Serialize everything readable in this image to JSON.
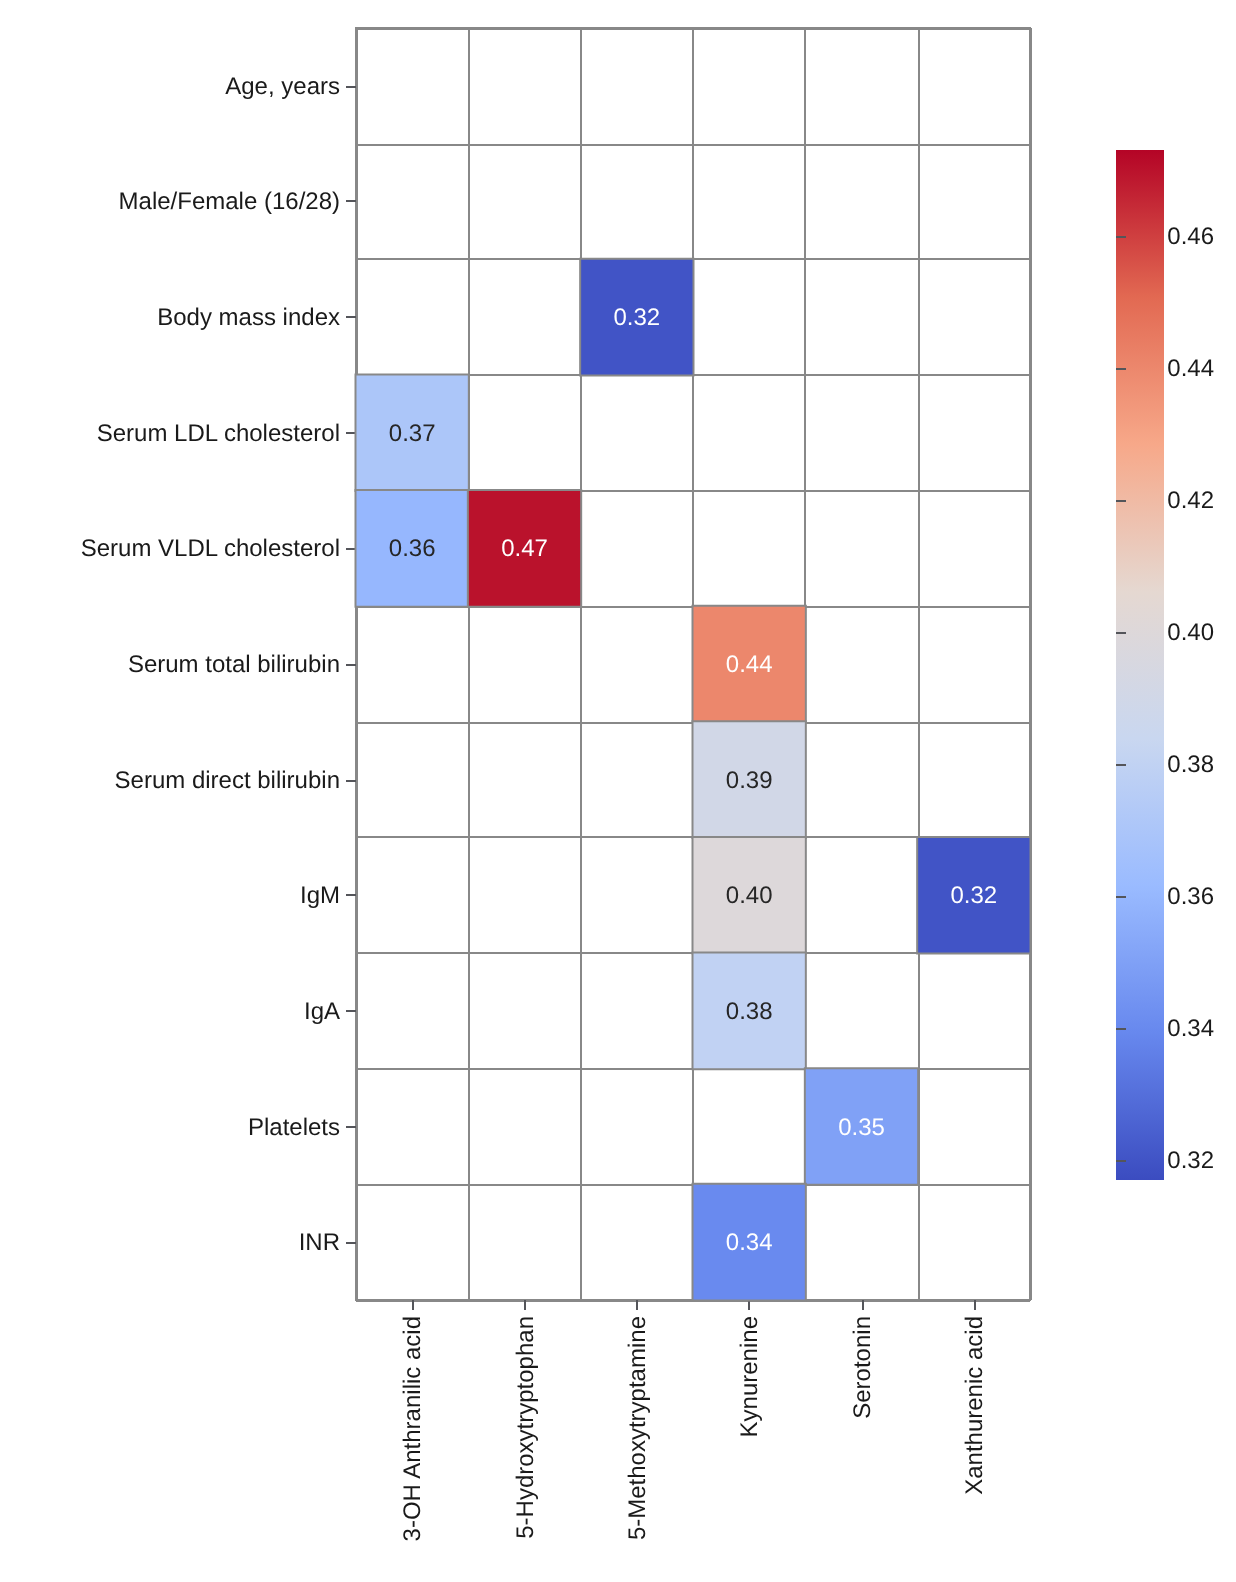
{
  "chart_data": {
    "type": "heatmap",
    "categories": [
      "3-OH Anthranilic acid",
      "5-Hydroxytryptophan",
      "5-Methoxytryptamine",
      "Kynurenine",
      "Serotonin",
      "Xanthurenic acid"
    ],
    "y_categories": [
      "Age, years",
      "Male/Female (16/28)",
      "Body mass index",
      "Serum LDL cholesterol",
      "Serum VLDL cholesterol",
      "Serum total bilirubin",
      "Serum direct bilirubin",
      "IgM",
      "IgA",
      "Platelets",
      "INR"
    ],
    "cells": [
      [
        null,
        null,
        null,
        null,
        null,
        null
      ],
      [
        null,
        null,
        null,
        null,
        null,
        null
      ],
      [
        null,
        null,
        0.32,
        null,
        null,
        null
      ],
      [
        0.37,
        null,
        null,
        null,
        null,
        null
      ],
      [
        0.36,
        0.47,
        null,
        null,
        null,
        null
      ],
      [
        null,
        null,
        null,
        0.44,
        null,
        null
      ],
      [
        null,
        null,
        null,
        0.39,
        null,
        null
      ],
      [
        null,
        null,
        null,
        0.4,
        null,
        0.32
      ],
      [
        null,
        null,
        null,
        0.38,
        null,
        null
      ],
      [
        null,
        null,
        null,
        null,
        0.35,
        null
      ],
      [
        null,
        null,
        null,
        0.34,
        null,
        null
      ]
    ],
    "cell_labels": [
      [
        null,
        null,
        null,
        null,
        null,
        null
      ],
      [
        null,
        null,
        null,
        null,
        null,
        null
      ],
      [
        null,
        null,
        "0.32",
        null,
        null,
        null
      ],
      [
        "0.37",
        null,
        null,
        null,
        null,
        null
      ],
      [
        "0.36",
        "0.47",
        null,
        null,
        null,
        null
      ],
      [
        null,
        null,
        null,
        "0.44",
        null,
        null
      ],
      [
        null,
        null,
        null,
        "0.39",
        null,
        null
      ],
      [
        null,
        null,
        null,
        "0.40",
        null,
        "0.32"
      ],
      [
        null,
        null,
        null,
        "0.38",
        null,
        null
      ],
      [
        null,
        null,
        null,
        null,
        "0.35",
        null
      ],
      [
        null,
        null,
        null,
        "0.34",
        null,
        null
      ]
    ],
    "clim": [
      0.317,
      0.473
    ],
    "cticks": [
      0.32,
      0.34,
      0.36,
      0.38,
      {
        "value": 0.4,
        "label": "0.40"
      },
      0.42,
      0.44,
      0.46
    ]
  }
}
